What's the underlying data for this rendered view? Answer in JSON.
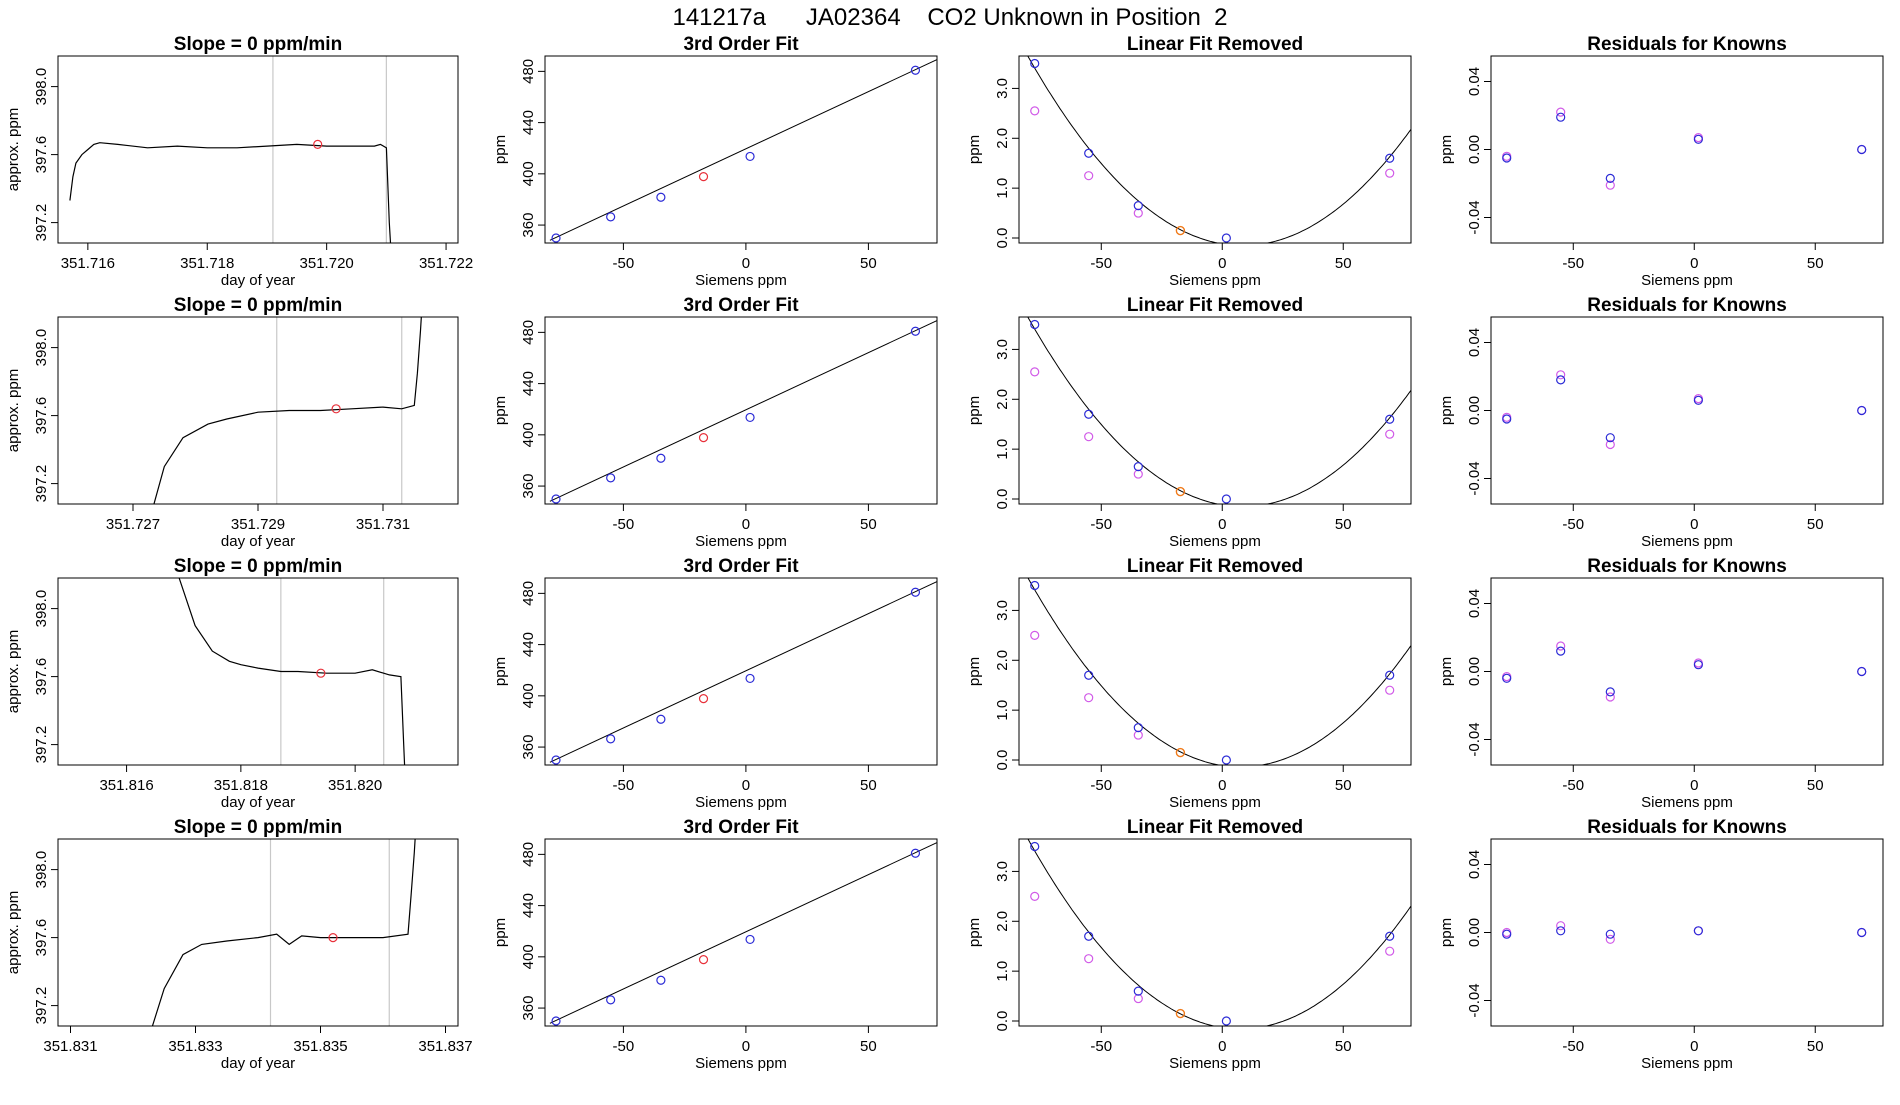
{
  "page_title": "141217a      JA02364    CO2 Unknown in Position  2",
  "colors": {
    "trace": "#000000",
    "curve": "#000000",
    "red_point": "#e8303a",
    "blue_point": "#2b2bd6",
    "magenta_point": "#d15ae8",
    "orange_point": "#f07a1a",
    "guide_line": "#c8c8c8",
    "frame": "#000000"
  },
  "chart_data": [
    {
      "type": "line",
      "panel": "trace",
      "row": 0,
      "title": "Slope =  0  ppm/min",
      "xlabel": "day of year",
      "ylabel": "approx. ppm",
      "xlim": [
        351.7155,
        351.7222
      ],
      "ylim": [
        397.08,
        398.18
      ],
      "xticks": [
        351.716,
        351.718,
        351.72,
        351.722
      ],
      "xtick_labels": [
        "351.716",
        "351.718",
        "351.720",
        "351.722"
      ],
      "yticks": [
        397.2,
        397.6,
        398.0
      ],
      "ytick_labels": [
        "397.2",
        "397.6",
        "398.0"
      ],
      "vlines": [
        351.7191,
        351.721
      ],
      "marker": {
        "x": 351.71985,
        "y": 397.66
      },
      "x": [
        351.7157,
        351.71575,
        351.7158,
        351.7159,
        351.716,
        351.7161,
        351.7162,
        351.7165,
        351.717,
        351.7175,
        351.718,
        351.7185,
        351.719,
        351.7195,
        351.72,
        351.7205,
        351.7208,
        351.7209,
        351.721,
        351.72105,
        351.7211,
        351.72115
      ],
      "y": [
        397.33,
        397.47,
        397.55,
        397.6,
        397.63,
        397.66,
        397.67,
        397.66,
        397.64,
        397.65,
        397.64,
        397.64,
        397.65,
        397.66,
        397.65,
        397.65,
        397.65,
        397.66,
        397.64,
        397.2,
        396.9,
        396.8
      ]
    },
    {
      "type": "scatter",
      "panel": "fit",
      "row": 0,
      "title": "3rd Order Fit",
      "xlabel": "Siemens ppm",
      "ylabel": "ppm",
      "xlim": [
        -82,
        78
      ],
      "ylim": [
        346,
        492
      ],
      "xticks": [
        -50,
        0,
        50
      ],
      "xtick_labels": [
        "-50",
        "0",
        "50"
      ],
      "yticks": [
        360,
        400,
        440,
        480
      ],
      "ytick_labels": [
        "360",
        "400",
        "440",
        "480"
      ],
      "line": {
        "x": [
          -80,
          78
        ],
        "y": [
          348.1,
          489.2
        ]
      },
      "points_blue": {
        "x": [
          -77.5,
          -55.2,
          -34.7,
          1.7,
          69.2
        ],
        "y": [
          349.9,
          366.4,
          381.7,
          413.6,
          480.9
        ]
      },
      "points_red": {
        "x": [
          -17.3
        ],
        "y": [
          397.8
        ]
      }
    },
    {
      "type": "scatter",
      "panel": "linear_removed",
      "row": 0,
      "title": "Linear Fit Removed",
      "xlabel": "Siemens ppm",
      "ylabel": "ppm",
      "xlim": [
        -84,
        78
      ],
      "ylim": [
        -0.1,
        3.65
      ],
      "xticks": [
        -50,
        0,
        50
      ],
      "xtick_labels": [
        "-50",
        "0",
        "50"
      ],
      "yticks": [
        0.0,
        1.0,
        2.0,
        3.0
      ],
      "ytick_labels": [
        "0.0",
        "1.0",
        "2.0",
        "3.0"
      ],
      "points_blue": {
        "x": [
          -77.5,
          -55.2,
          -34.7,
          1.7,
          69.2
        ],
        "y": [
          3.5,
          1.7,
          0.65,
          0.0,
          1.6
        ]
      },
      "points_magenta": {
        "x": [
          -77.5,
          -55.2,
          -34.7,
          69.2
        ],
        "y": [
          2.55,
          1.25,
          0.5,
          1.3
        ]
      },
      "points_orange": {
        "x": [
          -17.3
        ],
        "y": [
          0.15
        ]
      }
    },
    {
      "type": "scatter",
      "panel": "residuals",
      "row": 0,
      "title": "Residuals for Knowns",
      "xlabel": "Siemens ppm",
      "ylabel": "ppm",
      "xlim": [
        -84,
        78
      ],
      "ylim": [
        -0.055,
        0.055
      ],
      "xticks": [
        -50,
        0,
        50
      ],
      "xtick_labels": [
        "-50",
        "0",
        "50"
      ],
      "yticks": [
        -0.04,
        0.0,
        0.04
      ],
      "ytick_labels": [
        "-0.04",
        "0.00",
        "0.04"
      ],
      "points_blue": {
        "x": [
          -77.5,
          -55.2,
          -34.7,
          1.7,
          69.2
        ],
        "y": [
          -0.005,
          0.019,
          -0.017,
          0.006,
          0.0
        ]
      },
      "points_magenta": {
        "x": [
          -77.5,
          -55.2,
          -34.7,
          1.7,
          69.2
        ],
        "y": [
          -0.004,
          0.022,
          -0.021,
          0.007,
          0.0
        ]
      }
    },
    {
      "type": "line",
      "panel": "trace",
      "row": 1,
      "title": "Slope =  0  ppm/min",
      "xlabel": "day of year",
      "ylabel": "approx. ppm",
      "xlim": [
        351.7258,
        351.7322
      ],
      "ylim": [
        397.08,
        398.18
      ],
      "xticks": [
        351.727,
        351.729,
        351.731
      ],
      "xtick_labels": [
        "351.727",
        "351.729",
        "351.731"
      ],
      "yticks": [
        397.2,
        397.6,
        398.0
      ],
      "ytick_labels": [
        "397.2",
        "397.6",
        "398.0"
      ],
      "vlines": [
        351.7293,
        351.7313
      ],
      "marker": {
        "x": 351.73025,
        "y": 397.64
      },
      "x": [
        351.7272,
        351.7275,
        351.7278,
        351.7282,
        351.7285,
        351.729,
        351.7295,
        351.73,
        351.7305,
        351.731,
        351.7313,
        351.7315,
        351.73155,
        351.7316,
        351.73165
      ],
      "y": [
        396.9,
        397.3,
        397.47,
        397.55,
        397.58,
        397.62,
        397.63,
        397.63,
        397.64,
        397.65,
        397.64,
        397.66,
        397.85,
        398.1,
        398.4
      ]
    },
    {
      "type": "scatter",
      "panel": "fit",
      "row": 1,
      "title": "3rd Order Fit",
      "xlabel": "Siemens ppm",
      "ylabel": "ppm",
      "xlim": [
        -82,
        78
      ],
      "ylim": [
        346,
        492
      ],
      "xticks": [
        -50,
        0,
        50
      ],
      "xtick_labels": [
        "-50",
        "0",
        "50"
      ],
      "yticks": [
        360,
        400,
        440,
        480
      ],
      "ytick_labels": [
        "360",
        "400",
        "440",
        "480"
      ],
      "line": {
        "x": [
          -80,
          78
        ],
        "y": [
          348.1,
          489.2
        ]
      },
      "points_blue": {
        "x": [
          -77.5,
          -55.2,
          -34.7,
          1.7,
          69.2
        ],
        "y": [
          349.9,
          366.4,
          381.7,
          413.6,
          480.9
        ]
      },
      "points_red": {
        "x": [
          -17.3
        ],
        "y": [
          397.8
        ]
      }
    },
    {
      "type": "scatter",
      "panel": "linear_removed",
      "row": 1,
      "title": "Linear Fit Removed",
      "xlabel": "Siemens ppm",
      "ylabel": "ppm",
      "xlim": [
        -84,
        78
      ],
      "ylim": [
        -0.1,
        3.65
      ],
      "xticks": [
        -50,
        0,
        50
      ],
      "xtick_labels": [
        "-50",
        "0",
        "50"
      ],
      "yticks": [
        0.0,
        1.0,
        2.0,
        3.0
      ],
      "ytick_labels": [
        "0.0",
        "1.0",
        "2.0",
        "3.0"
      ],
      "points_blue": {
        "x": [
          -77.5,
          -55.2,
          -34.7,
          1.7,
          69.2
        ],
        "y": [
          3.5,
          1.7,
          0.65,
          0.0,
          1.6
        ]
      },
      "points_magenta": {
        "x": [
          -77.5,
          -55.2,
          -34.7,
          69.2
        ],
        "y": [
          2.55,
          1.25,
          0.5,
          1.3
        ]
      },
      "points_orange": {
        "x": [
          -17.3
        ],
        "y": [
          0.15
        ]
      }
    },
    {
      "type": "scatter",
      "panel": "residuals",
      "row": 1,
      "title": "Residuals for Knowns",
      "xlabel": "Siemens ppm",
      "ylabel": "ppm",
      "xlim": [
        -84,
        78
      ],
      "ylim": [
        -0.055,
        0.055
      ],
      "xticks": [
        -50,
        0,
        50
      ],
      "xtick_labels": [
        "-50",
        "0",
        "50"
      ],
      "yticks": [
        -0.04,
        0.0,
        0.04
      ],
      "ytick_labels": [
        "-0.04",
        "0.00",
        "0.04"
      ],
      "points_blue": {
        "x": [
          -77.5,
          -55.2,
          -34.7,
          1.7,
          69.2
        ],
        "y": [
          -0.005,
          0.018,
          -0.016,
          0.006,
          0.0
        ]
      },
      "points_magenta": {
        "x": [
          -77.5,
          -55.2,
          -34.7,
          1.7,
          69.2
        ],
        "y": [
          -0.004,
          0.021,
          -0.02,
          0.007,
          0.0
        ]
      }
    },
    {
      "type": "line",
      "panel": "trace",
      "row": 2,
      "title": "Slope =  0  ppm/min",
      "xlabel": "day of year",
      "ylabel": "approx. ppm",
      "xlim": [
        351.8148,
        351.8218
      ],
      "ylim": [
        397.08,
        398.18
      ],
      "xticks": [
        351.816,
        351.818,
        351.82
      ],
      "xtick_labels": [
        "351.816",
        "351.818",
        "351.820"
      ],
      "yticks": [
        397.2,
        397.6,
        398.0
      ],
      "ytick_labels": [
        "397.2",
        "397.6",
        "398.0"
      ],
      "vlines": [
        351.8187,
        351.8205
      ],
      "marker": {
        "x": 351.8194,
        "y": 397.62
      },
      "x": [
        351.8167,
        351.817,
        351.8172,
        351.8175,
        351.8178,
        351.818,
        351.8183,
        351.8187,
        351.819,
        351.8195,
        351.82,
        351.8203,
        351.8206,
        351.8208,
        351.82085,
        351.8209
      ],
      "y": [
        398.4,
        398.1,
        397.9,
        397.75,
        397.69,
        397.67,
        397.65,
        397.63,
        397.63,
        397.62,
        397.62,
        397.64,
        397.61,
        397.6,
        397.2,
        396.8
      ]
    },
    {
      "type": "scatter",
      "panel": "fit",
      "row": 2,
      "title": "3rd Order Fit",
      "xlabel": "Siemens ppm",
      "ylabel": "ppm",
      "xlim": [
        -82,
        78
      ],
      "ylim": [
        346,
        492
      ],
      "xticks": [
        -50,
        0,
        50
      ],
      "xtick_labels": [
        "-50",
        "0",
        "50"
      ],
      "yticks": [
        360,
        400,
        440,
        480
      ],
      "ytick_labels": [
        "360",
        "400",
        "440",
        "480"
      ],
      "line": {
        "x": [
          -80,
          78
        ],
        "y": [
          348.1,
          489.2
        ]
      },
      "points_blue": {
        "x": [
          -77.5,
          -55.2,
          -34.7,
          1.7,
          69.2
        ],
        "y": [
          349.9,
          366.4,
          381.7,
          413.6,
          480.9
        ]
      },
      "points_red": {
        "x": [
          -17.3
        ],
        "y": [
          397.8
        ]
      }
    },
    {
      "type": "scatter",
      "panel": "linear_removed",
      "row": 2,
      "title": "Linear Fit Removed",
      "xlabel": "Siemens ppm",
      "ylabel": "ppm",
      "xlim": [
        -84,
        78
      ],
      "ylim": [
        -0.1,
        3.65
      ],
      "xticks": [
        -50,
        0,
        50
      ],
      "xtick_labels": [
        "-50",
        "0",
        "50"
      ],
      "yticks": [
        0.0,
        1.0,
        2.0,
        3.0
      ],
      "ytick_labels": [
        "0.0",
        "1.0",
        "2.0",
        "3.0"
      ],
      "points_blue": {
        "x": [
          -77.5,
          -55.2,
          -34.7,
          1.7,
          69.2
        ],
        "y": [
          3.5,
          1.7,
          0.65,
          0.0,
          1.7
        ]
      },
      "points_magenta": {
        "x": [
          -77.5,
          -55.2,
          -34.7,
          69.2
        ],
        "y": [
          2.5,
          1.25,
          0.5,
          1.4
        ]
      },
      "points_orange": {
        "x": [
          -17.3
        ],
        "y": [
          0.15
        ]
      }
    },
    {
      "type": "scatter",
      "panel": "residuals",
      "row": 2,
      "title": "Residuals for Knowns",
      "xlabel": "Siemens ppm",
      "ylabel": "ppm",
      "xlim": [
        -84,
        78
      ],
      "ylim": [
        -0.055,
        0.055
      ],
      "xticks": [
        -50,
        0,
        50
      ],
      "xtick_labels": [
        "-50",
        "0",
        "50"
      ],
      "yticks": [
        -0.04,
        0.0,
        0.04
      ],
      "ytick_labels": [
        "-0.04",
        "0.00",
        "0.04"
      ],
      "points_blue": {
        "x": [
          -77.5,
          -55.2,
          -34.7,
          1.7,
          69.2
        ],
        "y": [
          -0.004,
          0.012,
          -0.012,
          0.004,
          0.0
        ]
      },
      "points_magenta": {
        "x": [
          -77.5,
          -55.2,
          -34.7,
          1.7,
          69.2
        ],
        "y": [
          -0.003,
          0.015,
          -0.015,
          0.005,
          0.0
        ]
      }
    },
    {
      "type": "line",
      "panel": "trace",
      "row": 3,
      "title": "Slope =  0  ppm/min",
      "xlabel": "day of year",
      "ylabel": "approx. ppm",
      "xlim": [
        351.8308,
        351.8372
      ],
      "ylim": [
        397.08,
        398.18
      ],
      "xticks": [
        351.831,
        351.833,
        351.835,
        351.837
      ],
      "xtick_labels": [
        "351.831",
        "351.833",
        "351.835",
        "351.837"
      ],
      "yticks": [
        397.2,
        397.6,
        398.0
      ],
      "ytick_labels": [
        "397.2",
        "397.6",
        "398.0"
      ],
      "vlines": [
        351.8342,
        351.8361
      ],
      "marker": {
        "x": 351.8352,
        "y": 397.6
      },
      "x": [
        351.8322,
        351.8325,
        351.8328,
        351.8331,
        351.8335,
        351.834,
        351.8343,
        351.8345,
        351.8347,
        351.835,
        351.8355,
        351.836,
        351.8364,
        351.83645,
        351.8365,
        351.83655
      ],
      "y": [
        396.95,
        397.3,
        397.5,
        397.56,
        397.58,
        397.6,
        397.62,
        397.56,
        397.61,
        397.6,
        397.6,
        397.6,
        397.62,
        397.85,
        398.1,
        398.4
      ]
    },
    {
      "type": "scatter",
      "panel": "fit",
      "row": 3,
      "title": "3rd Order Fit",
      "xlabel": "Siemens ppm",
      "ylabel": "ppm",
      "xlim": [
        -82,
        78
      ],
      "ylim": [
        346,
        492
      ],
      "xticks": [
        -50,
        0,
        50
      ],
      "xtick_labels": [
        "-50",
        "0",
        "50"
      ],
      "yticks": [
        360,
        400,
        440,
        480
      ],
      "ytick_labels": [
        "360",
        "400",
        "440",
        "480"
      ],
      "line": {
        "x": [
          -80,
          78
        ],
        "y": [
          348.1,
          489.2
        ]
      },
      "points_blue": {
        "x": [
          -77.5,
          -55.2,
          -34.7,
          1.7,
          69.2
        ],
        "y": [
          349.9,
          366.4,
          381.7,
          413.6,
          480.9
        ]
      },
      "points_red": {
        "x": [
          -17.3
        ],
        "y": [
          397.8
        ]
      }
    },
    {
      "type": "scatter",
      "panel": "linear_removed",
      "row": 3,
      "title": "Linear Fit Removed",
      "xlabel": "Siemens ppm",
      "ylabel": "ppm",
      "xlim": [
        -84,
        78
      ],
      "ylim": [
        -0.1,
        3.65
      ],
      "xticks": [
        -50,
        0,
        50
      ],
      "xtick_labels": [
        "-50",
        "0",
        "50"
      ],
      "yticks": [
        0.0,
        1.0,
        2.0,
        3.0
      ],
      "ytick_labels": [
        "0.0",
        "1.0",
        "2.0",
        "3.0"
      ],
      "points_blue": {
        "x": [
          -77.5,
          -55.2,
          -34.7,
          1.7,
          69.2
        ],
        "y": [
          3.5,
          1.7,
          0.6,
          0.0,
          1.7
        ]
      },
      "points_magenta": {
        "x": [
          -77.5,
          -55.2,
          -34.7,
          69.2
        ],
        "y": [
          2.5,
          1.25,
          0.45,
          1.4
        ]
      },
      "points_orange": {
        "x": [
          -17.3
        ],
        "y": [
          0.15
        ]
      }
    },
    {
      "type": "scatter",
      "panel": "residuals",
      "row": 3,
      "title": "Residuals for Knowns",
      "xlabel": "Siemens ppm",
      "ylabel": "ppm",
      "xlim": [
        -84,
        78
      ],
      "ylim": [
        -0.055,
        0.055
      ],
      "xticks": [
        -50,
        0,
        50
      ],
      "xtick_labels": [
        "-50",
        "0",
        "50"
      ],
      "yticks": [
        -0.04,
        0.0,
        0.04
      ],
      "ytick_labels": [
        "-0.04",
        "0.00",
        "0.04"
      ],
      "points_blue": {
        "x": [
          -77.5,
          -55.2,
          -34.7,
          1.7,
          69.2
        ],
        "y": [
          -0.001,
          0.001,
          -0.001,
          0.001,
          0.0
        ]
      },
      "points_magenta": {
        "x": [
          -77.5,
          -55.2,
          -34.7,
          1.7,
          69.2
        ],
        "y": [
          0.0,
          0.004,
          -0.004,
          0.001,
          0.0
        ]
      }
    }
  ]
}
